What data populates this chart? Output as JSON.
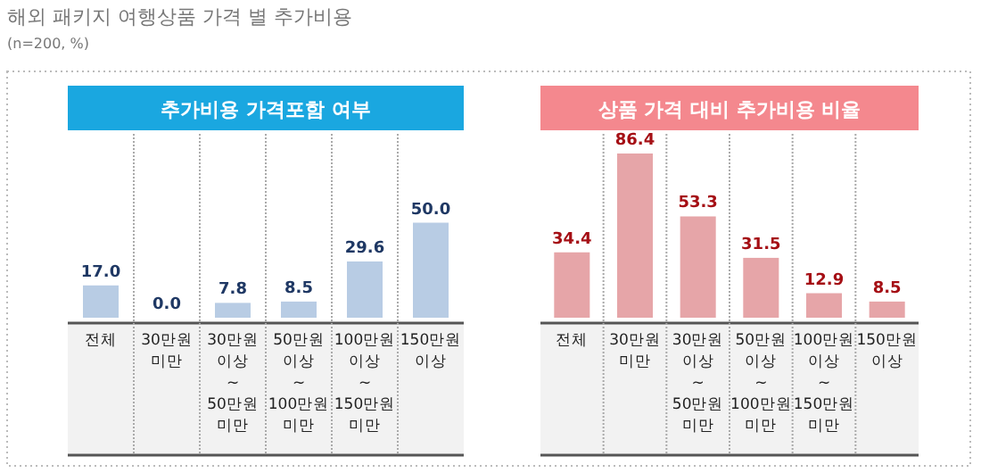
{
  "chart_data": [
    {
      "type": "bar",
      "title": "추가비용 가격포함 여부",
      "annotations": [
        "해외 패키지 여행상품 가격 별 추가비용",
        "(n=200, %)"
      ],
      "categories": [
        "전체",
        "30만원 미만",
        "30만원 이상 ~ 50만원 미만",
        "50만원 이상 ~ 100만원 미만",
        "100만원 이상 ~ 150만원 미만",
        "150만원 이상"
      ],
      "values": [
        17.0,
        0.0,
        7.8,
        8.5,
        29.6,
        50.0
      ],
      "value_labels": [
        "17.0",
        "0.0",
        "7.8",
        "8.5",
        "29.6",
        "50.0"
      ],
      "color": "#b8cce4"
    },
    {
      "type": "bar",
      "title": "상품 가격 대비 추가비용 비율",
      "categories": [
        "전체",
        "30만원 미만",
        "30만원 이상 ~ 50만원 미만",
        "50만원 이상 ~ 100만원 미만",
        "100만원 이상 ~ 150만원 미만",
        "150만원 이상"
      ],
      "values": [
        34.4,
        86.4,
        53.3,
        31.5,
        12.9,
        8.5
      ],
      "value_labels": [
        "34.4",
        "86.4",
        "53.3",
        "31.5",
        "12.9",
        "8.5"
      ],
      "color": "#e6a5a8"
    }
  ]
}
